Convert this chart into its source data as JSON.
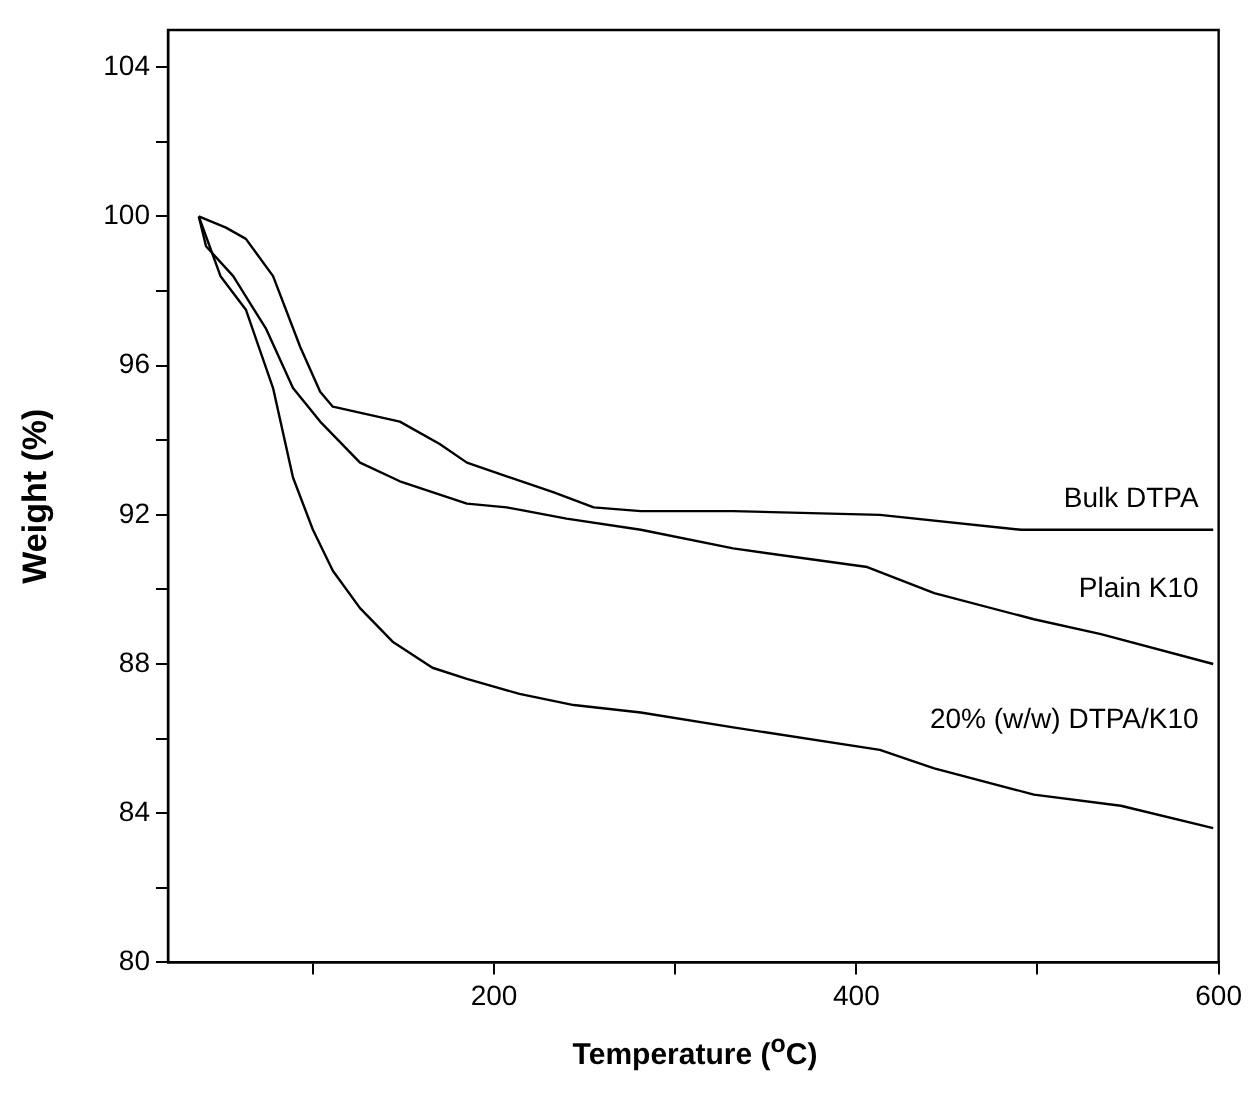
{
  "chart_data": {
    "type": "line",
    "xlabel": "Temperature ($^{o}$C)",
    "ylabel": "Weight (%)",
    "xlim": [
      20,
      600
    ],
    "xticks": [
      {
        "value": 100,
        "label": null
      },
      200,
      {
        "value": 300,
        "label": null
      },
      400,
      {
        "value": 500,
        "label": null
      },
      600
    ],
    "ylim": [
      80,
      105
    ],
    "yticks": [
      80,
      {
        "value": 82,
        "label": null
      },
      84,
      {
        "value": 86,
        "label": null
      },
      88,
      {
        "value": 90,
        "label": null
      },
      92,
      {
        "value": 94,
        "label": null
      },
      96,
      {
        "value": 98,
        "label": null
      },
      100,
      {
        "value": 102,
        "label": null
      },
      104
    ],
    "grid": false,
    "legend": false,
    "marker": "none",
    "line_style": "solid",
    "series": [
      {
        "name": "Bulk DTPA",
        "color": "#000000",
        "x": [
          37,
          52,
          63,
          78,
          93,
          104,
          111,
          148,
          170,
          185,
          203,
          233,
          255,
          281,
          332,
          413,
          491,
          597
        ],
        "values": [
          100,
          99.7,
          99.4,
          98.4,
          96.5,
          95.3,
          94.9,
          94.5,
          93.9,
          93.4,
          93.1,
          92.6,
          92.2,
          92.1,
          92.1,
          92.0,
          91.6,
          91.6
        ]
      },
      {
        "name": "Plain K10",
        "color": "#000000",
        "x": [
          37,
          41,
          56,
          74,
          89,
          104,
          126,
          148,
          185,
          207,
          240,
          281,
          332,
          406,
          443,
          498,
          535,
          597
        ],
        "values": [
          100,
          99.2,
          98.4,
          97.0,
          95.4,
          94.5,
          93.4,
          92.9,
          92.3,
          92.2,
          91.9,
          91.6,
          91.1,
          90.6,
          89.9,
          89.2,
          88.8,
          88.0
        ]
      },
      {
        "name": "20% (w/w) DTPA/K10",
        "color": "#000000",
        "x": [
          37,
          49,
          63,
          78,
          89,
          100,
          111,
          126,
          144,
          166,
          185,
          214,
          244,
          281,
          332,
          413,
          443,
          498,
          546,
          597
        ],
        "values": [
          100,
          98.4,
          97.5,
          95.4,
          93.0,
          91.6,
          90.5,
          89.5,
          88.6,
          87.9,
          87.6,
          87.2,
          86.9,
          86.7,
          86.3,
          85.7,
          85.2,
          84.5,
          84.2,
          83.6
        ]
      }
    ]
  }
}
